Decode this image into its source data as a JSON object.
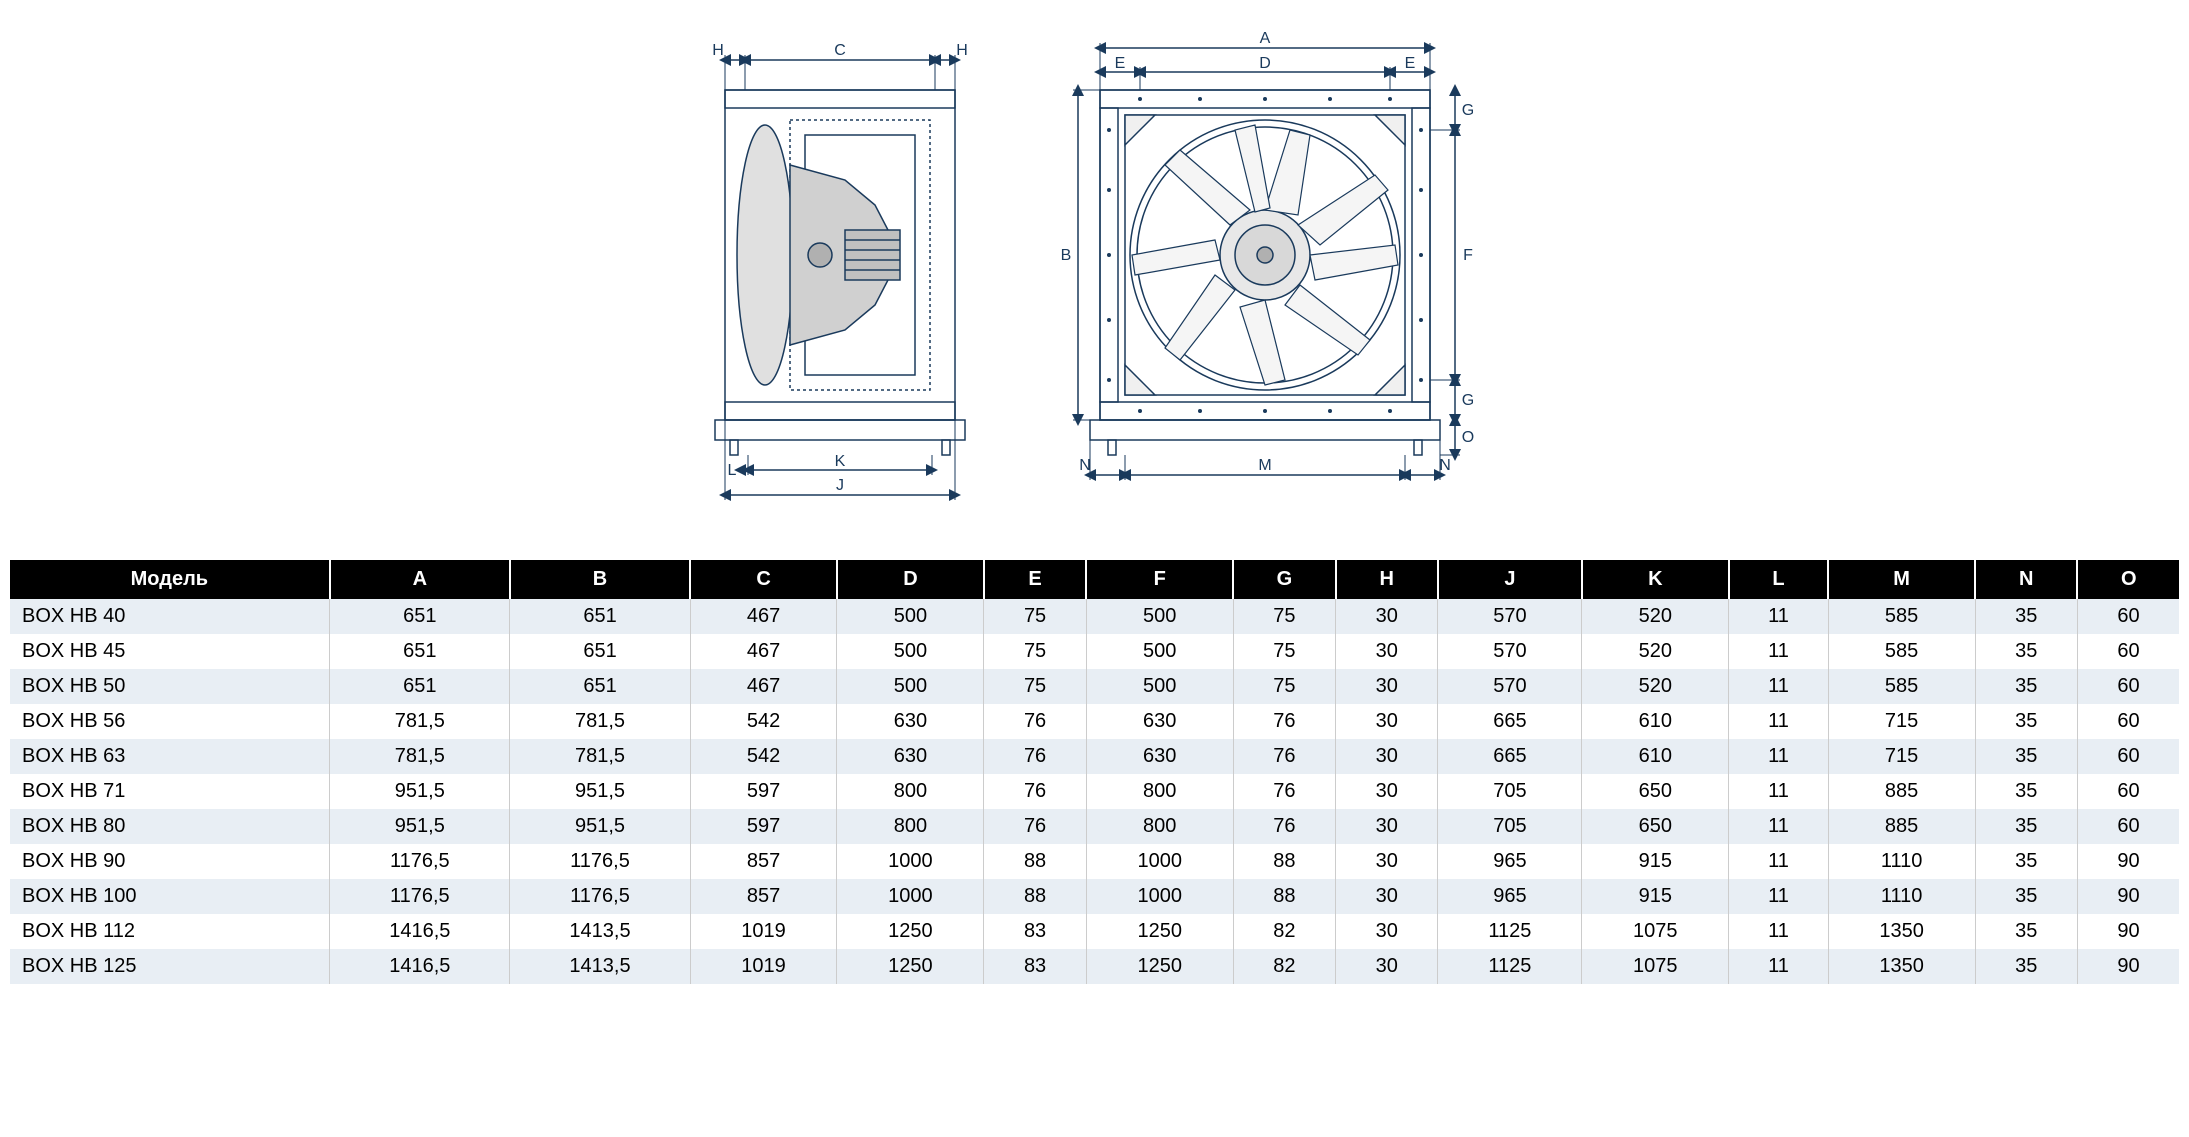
{
  "diagram": {
    "labels": {
      "A": "A",
      "B": "B",
      "C": "C",
      "D": "D",
      "E": "E",
      "F": "F",
      "G": "G",
      "H": "H",
      "J": "J",
      "K": "K",
      "L": "L",
      "M": "M",
      "N": "N",
      "O": "O"
    },
    "stroke_color": "#1a3a5c",
    "fill_color": "#ffffff",
    "line_width": 1.5
  },
  "table": {
    "header_bg": "#000000",
    "header_color": "#ffffff",
    "row_odd_bg": "#e8eef4",
    "row_even_bg": "#ffffff",
    "border_color": "#cccccc",
    "font_size": 20,
    "columns": [
      "Модель",
      "A",
      "B",
      "C",
      "D",
      "E",
      "F",
      "G",
      "H",
      "J",
      "K",
      "L",
      "M",
      "N",
      "O"
    ],
    "rows": [
      [
        "BOX HB 40",
        "651",
        "651",
        "467",
        "500",
        "75",
        "500",
        "75",
        "30",
        "570",
        "520",
        "11",
        "585",
        "35",
        "60"
      ],
      [
        "BOX HB 45",
        "651",
        "651",
        "467",
        "500",
        "75",
        "500",
        "75",
        "30",
        "570",
        "520",
        "11",
        "585",
        "35",
        "60"
      ],
      [
        "BOX HB 50",
        "651",
        "651",
        "467",
        "500",
        "75",
        "500",
        "75",
        "30",
        "570",
        "520",
        "11",
        "585",
        "35",
        "60"
      ],
      [
        "BOX HB 56",
        "781,5",
        "781,5",
        "542",
        "630",
        "76",
        "630",
        "76",
        "30",
        "665",
        "610",
        "11",
        "715",
        "35",
        "60"
      ],
      [
        "BOX HB 63",
        "781,5",
        "781,5",
        "542",
        "630",
        "76",
        "630",
        "76",
        "30",
        "665",
        "610",
        "11",
        "715",
        "35",
        "60"
      ],
      [
        "BOX HB 71",
        "951,5",
        "951,5",
        "597",
        "800",
        "76",
        "800",
        "76",
        "30",
        "705",
        "650",
        "11",
        "885",
        "35",
        "60"
      ],
      [
        "BOX HB 80",
        "951,5",
        "951,5",
        "597",
        "800",
        "76",
        "800",
        "76",
        "30",
        "705",
        "650",
        "11",
        "885",
        "35",
        "60"
      ],
      [
        "BOX HB 90",
        "1176,5",
        "1176,5",
        "857",
        "1000",
        "88",
        "1000",
        "88",
        "30",
        "965",
        "915",
        "11",
        "1110",
        "35",
        "90"
      ],
      [
        "BOX HB 100",
        "1176,5",
        "1176,5",
        "857",
        "1000",
        "88",
        "1000",
        "88",
        "30",
        "965",
        "915",
        "11",
        "1110",
        "35",
        "90"
      ],
      [
        "BOX HB 112",
        "1416,5",
        "1413,5",
        "1019",
        "1250",
        "83",
        "1250",
        "82",
        "30",
        "1125",
        "1075",
        "11",
        "1350",
        "35",
        "90"
      ],
      [
        "BOX HB 125",
        "1416,5",
        "1413,5",
        "1019",
        "1250",
        "83",
        "1250",
        "82",
        "30",
        "1125",
        "1075",
        "11",
        "1350",
        "35",
        "90"
      ]
    ]
  }
}
